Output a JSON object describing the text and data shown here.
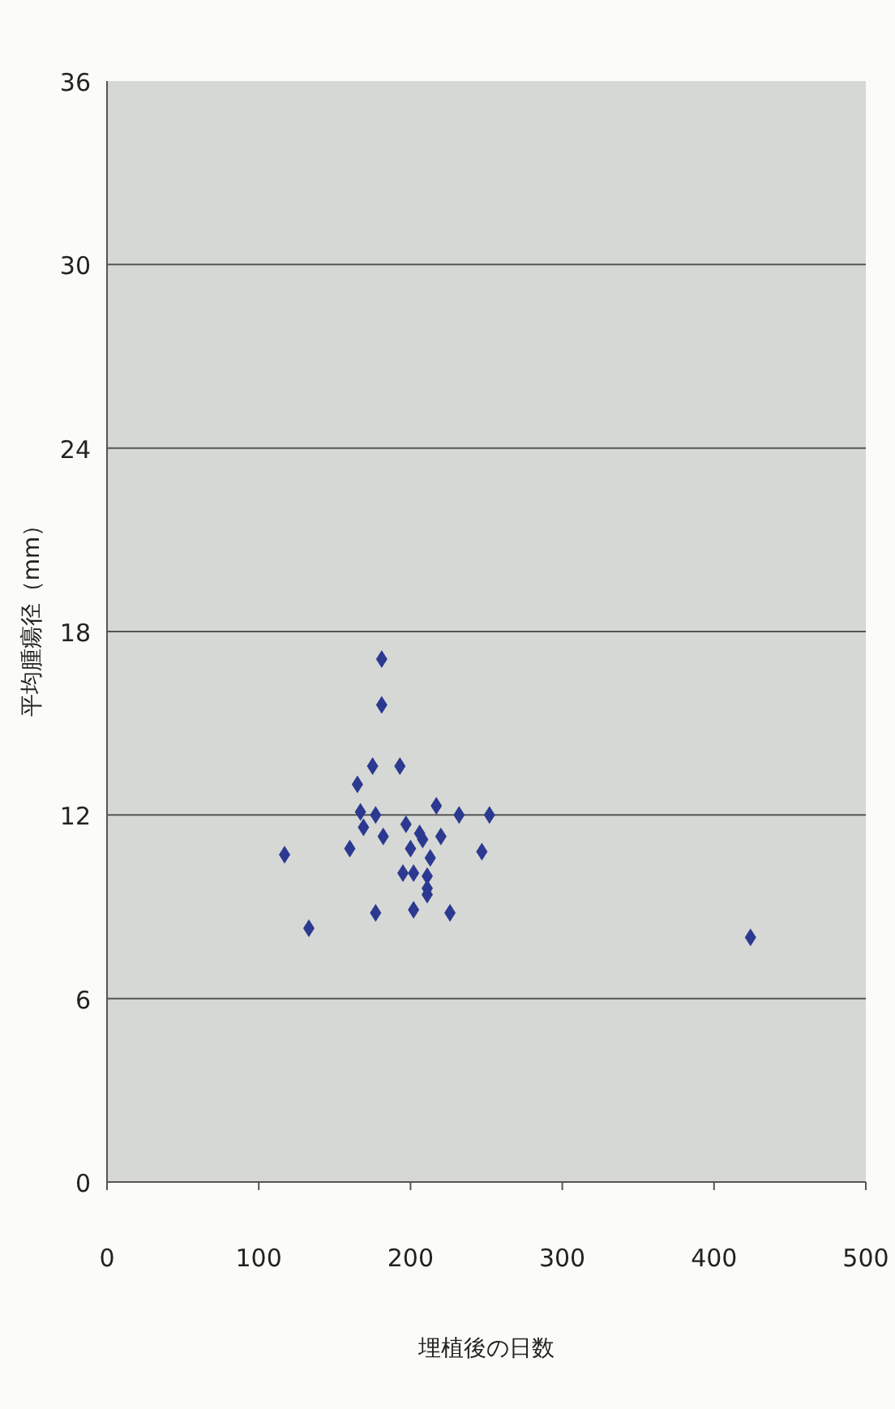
{
  "chart_data": {
    "type": "scatter",
    "xlabel": "埋植後の日数",
    "ylabel": "平均腫瘍径（mm）",
    "xlim": [
      0,
      500
    ],
    "xticks": [
      0,
      100,
      200,
      300,
      400,
      500
    ],
    "ylim": [
      0,
      36
    ],
    "yticks": [
      0,
      6,
      12,
      18,
      24,
      30,
      36
    ],
    "grid": "y",
    "marker": "diamond",
    "series": [
      {
        "color": "#2b3990",
        "x": [
          181,
          181,
          175,
          193,
          165,
          217,
          167,
          177,
          232,
          252,
          169,
          197,
          182,
          206,
          208,
          220,
          160,
          200,
          247,
          117,
          213,
          195,
          202,
          211,
          211,
          211,
          202,
          177,
          226,
          133,
          424
        ],
        "values": [
          17.1,
          15.6,
          13.6,
          13.6,
          13.0,
          12.3,
          12.1,
          12.0,
          12.0,
          12.0,
          11.6,
          11.7,
          11.3,
          11.4,
          11.2,
          11.3,
          10.9,
          10.9,
          10.8,
          10.7,
          10.6,
          10.1,
          10.1,
          10.0,
          9.6,
          9.4,
          8.9,
          8.8,
          8.8,
          8.3,
          8.0
        ]
      }
    ]
  }
}
